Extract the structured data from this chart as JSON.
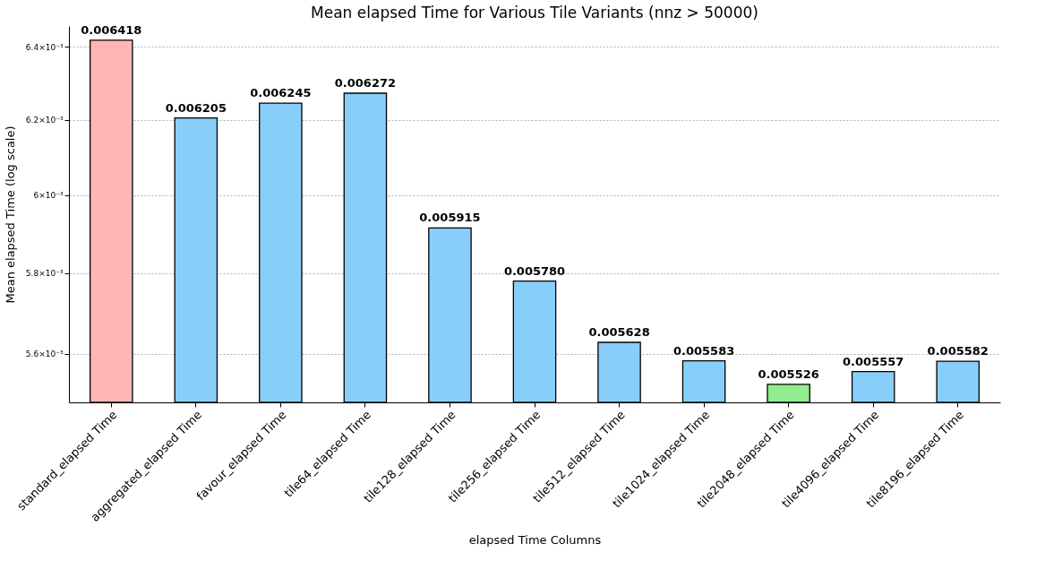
{
  "chart_data": {
    "type": "bar",
    "title": "Mean elapsed Time for Various Tile Variants (nnz > 50000)",
    "xlabel": "elapsed Time Columns",
    "ylabel": "Mean elapsed Time (log scale)",
    "categories": [
      "standard_elapsed Time",
      "aggregated_elapsed Time",
      "favour_elapsed Time",
      "tile64_elapsed Time",
      "tile128_elapsed Time",
      "tile256_elapsed Time",
      "tile512_elapsed Time",
      "tile1024_elapsed Time",
      "tile2048_elapsed Time",
      "tile4096_elapsed Time",
      "tile8196_elapsed Time"
    ],
    "values": [
      0.006418,
      0.006205,
      0.006245,
      0.006272,
      0.005915,
      0.00578,
      0.005628,
      0.005583,
      0.005526,
      0.005557,
      0.005582
    ],
    "value_labels": [
      "0.006418",
      "0.006205",
      "0.006245",
      "0.006272",
      "0.005915",
      "0.005780",
      "0.005628",
      "0.005583",
      "0.005526",
      "0.005557",
      "0.005582"
    ],
    "colors": [
      "#ffb6b6",
      "#87cefa",
      "#87cefa",
      "#87cefa",
      "#87cefa",
      "#87cefa",
      "#87cefa",
      "#87cefa",
      "#90ee90",
      "#87cefa",
      "#87cefa"
    ],
    "log": true,
    "ylim": [
      0.005483,
      0.006458
    ],
    "yticks": [
      {
        "value": 0.0056,
        "label": "5.6×10⁻³"
      },
      {
        "value": 0.0058,
        "label": "5.8×10⁻³"
      },
      {
        "value": 0.006,
        "label": "6×10⁻³"
      },
      {
        "value": 0.0062,
        "label": "6.2×10⁻³"
      },
      {
        "value": 0.0064,
        "label": "6.4×10⁻³"
      }
    ],
    "grid": "y",
    "legend": false
  }
}
